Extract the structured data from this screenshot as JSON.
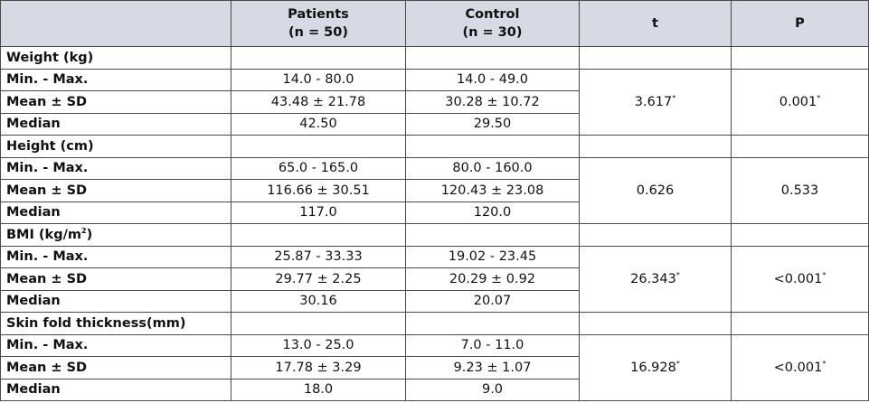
{
  "table": {
    "header": [
      "",
      [
        "Patients",
        "(n = 50)"
      ],
      [
        "Control",
        "(n = 30)"
      ],
      "t",
      "P"
    ],
    "groups": [
      {
        "label": "Weight (kg)",
        "rows": [
          [
            "Min. - Max.",
            "14.0 - 80.0",
            "14.0 - 49.0"
          ],
          [
            "Mean ± SD",
            "43.48 ± 21.78",
            "30.28 ± 10.72"
          ],
          [
            "Median",
            "42.50",
            "29.50"
          ]
        ],
        "t": [
          "3.617",
          "*"
        ],
        "p": [
          "0.001",
          "*"
        ]
      },
      {
        "label": "Height (cm)",
        "rows": [
          [
            "Min. - Max.",
            "65.0 - 165.0",
            "80.0 - 160.0"
          ],
          [
            "Mean ± SD",
            "116.66 ± 30.51",
            "120.43 ± 23.08"
          ],
          [
            "Median",
            "117.0",
            "120.0"
          ]
        ],
        "t": "0.626",
        "p": "0.533"
      },
      {
        "label": [
          "BMI (kg/m",
          "2",
          ")"
        ],
        "rows": [
          [
            "Min. - Max.",
            "25.87 - 33.33",
            "19.02 - 23.45"
          ],
          [
            "Mean ± SD",
            "29.77 ± 2.25",
            "20.29 ± 0.92"
          ],
          [
            "Median",
            "30.16",
            "20.07"
          ]
        ],
        "t": [
          "26.343",
          "*"
        ],
        "p": [
          "<0.001",
          "*"
        ]
      },
      {
        "label": "Skin fold thickness(mm)",
        "rows": [
          [
            "Min. - Max.",
            "13.0 - 25.0",
            "7.0 - 11.0"
          ],
          [
            "Mean ± SD",
            "17.78 ± 3.29",
            "9.23 ± 1.07"
          ],
          [
            "Median",
            "18.0",
            "9.0"
          ]
        ],
        "t": [
          "16.928",
          "*"
        ],
        "p": [
          "<0.001",
          "*"
        ]
      }
    ]
  }
}
